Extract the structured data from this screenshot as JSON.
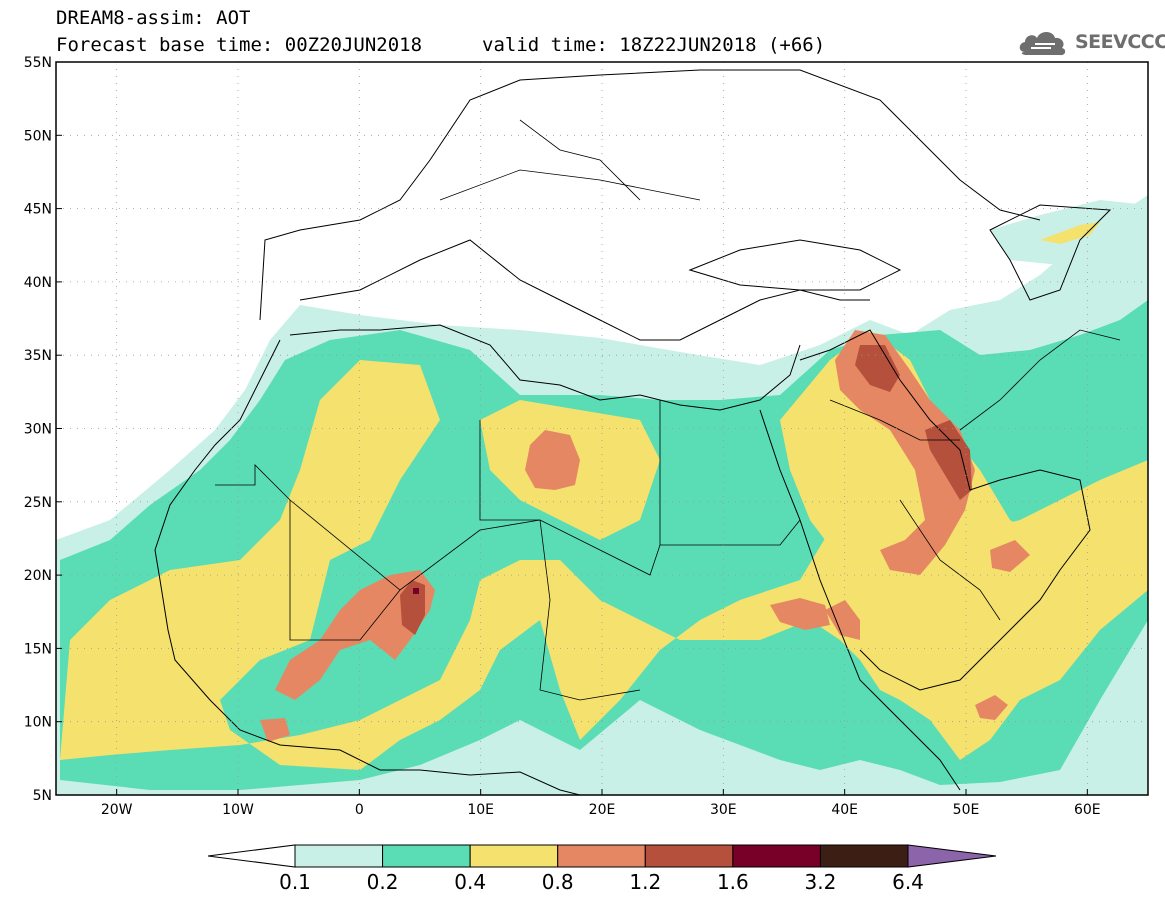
{
  "header": {
    "title": "DREAM8-assim: AOT",
    "base_time": "Forecast base time: 00Z20JUN2018",
    "valid_time": "valid time: 18Z22JUN2018 (+66)"
  },
  "logo": {
    "text": "SEEVCCC",
    "icon": "cloud-icon"
  },
  "map": {
    "lat_ticks": [
      "55N",
      "50N",
      "45N",
      "40N",
      "35N",
      "30N",
      "25N",
      "20N",
      "15N",
      "10N",
      "5N"
    ],
    "lon_ticks": [
      "20W",
      "10W",
      "0",
      "10E",
      "20E",
      "30E",
      "40E",
      "50E",
      "60E"
    ],
    "lat_range": [
      5,
      55
    ],
    "lon_range": [
      -25,
      65
    ],
    "grid": "dotted",
    "variable": "Aerosol Optical Thickness"
  },
  "legend": {
    "levels": [
      "0.1",
      "0.2",
      "0.4",
      "0.8",
      "1.2",
      "1.6",
      "3.2",
      "6.4"
    ],
    "colors": [
      "#ffffff",
      "#c8f0e6",
      "#5adcb4",
      "#f5e16e",
      "#e68764",
      "#b4503c",
      "#780028",
      "#3c1e14",
      "#8c64aa"
    ]
  },
  "colors": {
    "aot_0_1": "#c8f0e6",
    "aot_0_2": "#5adcb4",
    "aot_0_4": "#f5e16e",
    "aot_0_8": "#e68764",
    "aot_1_2": "#b4503c",
    "aot_1_6": "#780028"
  }
}
